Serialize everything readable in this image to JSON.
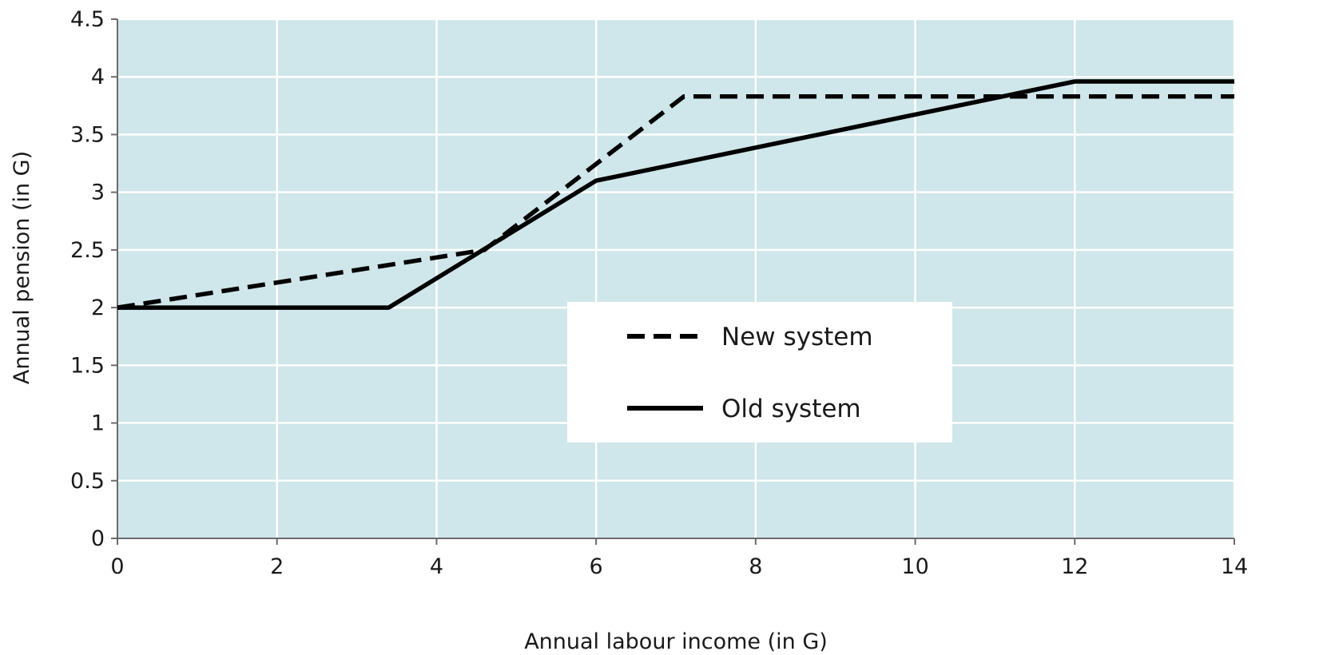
{
  "chart_data": {
    "type": "line",
    "title": "",
    "xlabel": "Annual labour income (in G)",
    "ylabel": "Annual pension (in G)",
    "xlim": [
      0,
      14
    ],
    "ylim": [
      0,
      4.5
    ],
    "xticks": [
      0,
      2,
      4,
      6,
      8,
      10,
      12,
      14
    ],
    "yticks": [
      0,
      0.5,
      1,
      1.5,
      2,
      2.5,
      3,
      3.5,
      4,
      4.5
    ],
    "xtick_labels": [
      "0",
      "2",
      "4",
      "6",
      "8",
      "10",
      "12",
      "14"
    ],
    "ytick_labels": [
      "0",
      "0.5",
      "1",
      "1.5",
      "2",
      "2.5",
      "3",
      "3.5",
      "4",
      "4.5"
    ],
    "grid": true,
    "plot_background": "#cfe6ea",
    "grid_color": "#ffffff",
    "legend_position": "center-right",
    "series": [
      {
        "name": "New system",
        "style": "dashed",
        "color": "#000000",
        "points": [
          [
            0,
            2.0
          ],
          [
            4.6,
            2.5
          ],
          [
            7.1,
            3.83
          ],
          [
            14,
            3.83
          ]
        ]
      },
      {
        "name": "Old system",
        "style": "solid",
        "color": "#000000",
        "points": [
          [
            0,
            2.0
          ],
          [
            3.4,
            2.0
          ],
          [
            6.0,
            3.1
          ],
          [
            12.0,
            3.96
          ],
          [
            14,
            3.96
          ]
        ]
      }
    ]
  }
}
